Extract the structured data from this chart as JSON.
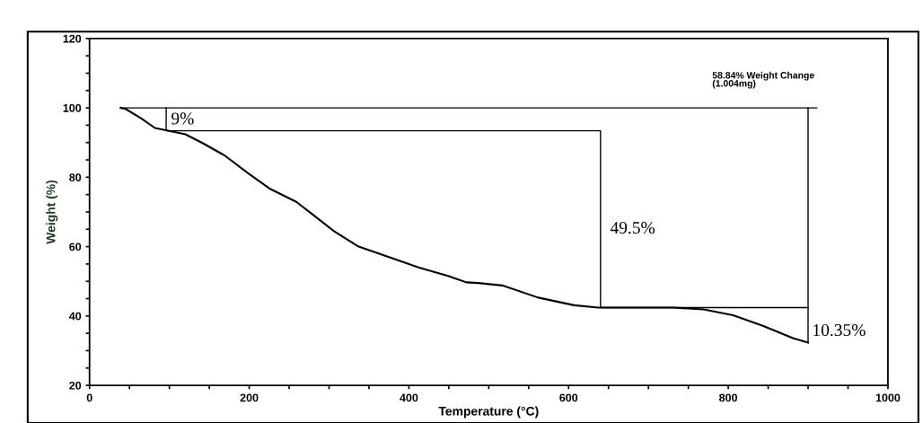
{
  "chart_data": {
    "type": "line",
    "xlabel": "Temperature (°C)",
    "ylabel": "Weight (%)",
    "xlim": [
      0,
      1000
    ],
    "ylim": [
      20,
      120
    ],
    "xticks": [
      0,
      {
        "value": 50,
        "label": null
      },
      {
        "value": 100,
        "label": null
      },
      {
        "value": 150,
        "label": null
      },
      200,
      {
        "value": 250,
        "label": null
      },
      {
        "value": 300,
        "label": null
      },
      {
        "value": 350,
        "label": null
      },
      400,
      {
        "value": 450,
        "label": null
      },
      {
        "value": 500,
        "label": null
      },
      {
        "value": 550,
        "label": null
      },
      600,
      {
        "value": 650,
        "label": null
      },
      {
        "value": 700,
        "label": null
      },
      {
        "value": 750,
        "label": null
      },
      800,
      {
        "value": 850,
        "label": null
      },
      {
        "value": 900,
        "label": null
      },
      {
        "value": 950,
        "label": null
      },
      1000
    ],
    "yticks": [
      20,
      {
        "value": 25,
        "label": null
      },
      {
        "value": 30,
        "label": null
      },
      {
        "value": 35,
        "label": null
      },
      40,
      {
        "value": 45,
        "label": null
      },
      {
        "value": 50,
        "label": null
      },
      {
        "value": 55,
        "label": null
      },
      60,
      {
        "value": 65,
        "label": null
      },
      {
        "value": 70,
        "label": null
      },
      {
        "value": 75,
        "label": null
      },
      80,
      {
        "value": 85,
        "label": null
      },
      {
        "value": 90,
        "label": null
      },
      {
        "value": 95,
        "label": null
      },
      100,
      {
        "value": 105,
        "label": null
      },
      {
        "value": 110,
        "label": null
      },
      {
        "value": 115,
        "label": null
      },
      120
    ],
    "grid": false,
    "marker": "none",
    "line_style": "solid",
    "series": [
      {
        "color": "#000000",
        "x": [
          39,
          45,
          64,
          82,
          97,
          120,
          142,
          169,
          199,
          225,
          259,
          281,
          307,
          337,
          375,
          412,
          450,
          472,
          487,
          517,
          562,
          607,
          637,
          675,
          731,
          769,
          806,
          844,
          881,
          900
        ],
        "values": [
          100,
          99.7,
          97.1,
          94.2,
          93.5,
          92.4,
          89.8,
          86.3,
          81.1,
          76.8,
          72.9,
          69,
          64.3,
          60,
          57,
          54,
          51.5,
          49.7,
          49.5,
          48.8,
          45.3,
          43.1,
          42.4,
          42.4,
          42.4,
          41.9,
          40.2,
          37.1,
          33.6,
          32.3
        ]
      },
      {
        "color": "#000000",
        "x": [
          39,
          911
        ],
        "values": [
          100,
          100
        ]
      },
      {
        "color": "#000000",
        "x": [
          96,
          96,
          640,
          640,
          900
        ],
        "values": [
          100,
          93.4,
          93.4,
          42.4,
          42.4
        ]
      },
      {
        "color": "#000000",
        "x": [
          900,
          900
        ],
        "values": [
          100,
          32.3
        ]
      }
    ],
    "annotations": [
      "58.84% Weight Change\n(1.004mg)",
      {
        "text": "9%",
        "x": 102,
        "y": 96.5
      },
      "49.5%",
      {
        "text": "10.35%",
        "x": 905,
        "y": 35.5
      }
    ]
  }
}
